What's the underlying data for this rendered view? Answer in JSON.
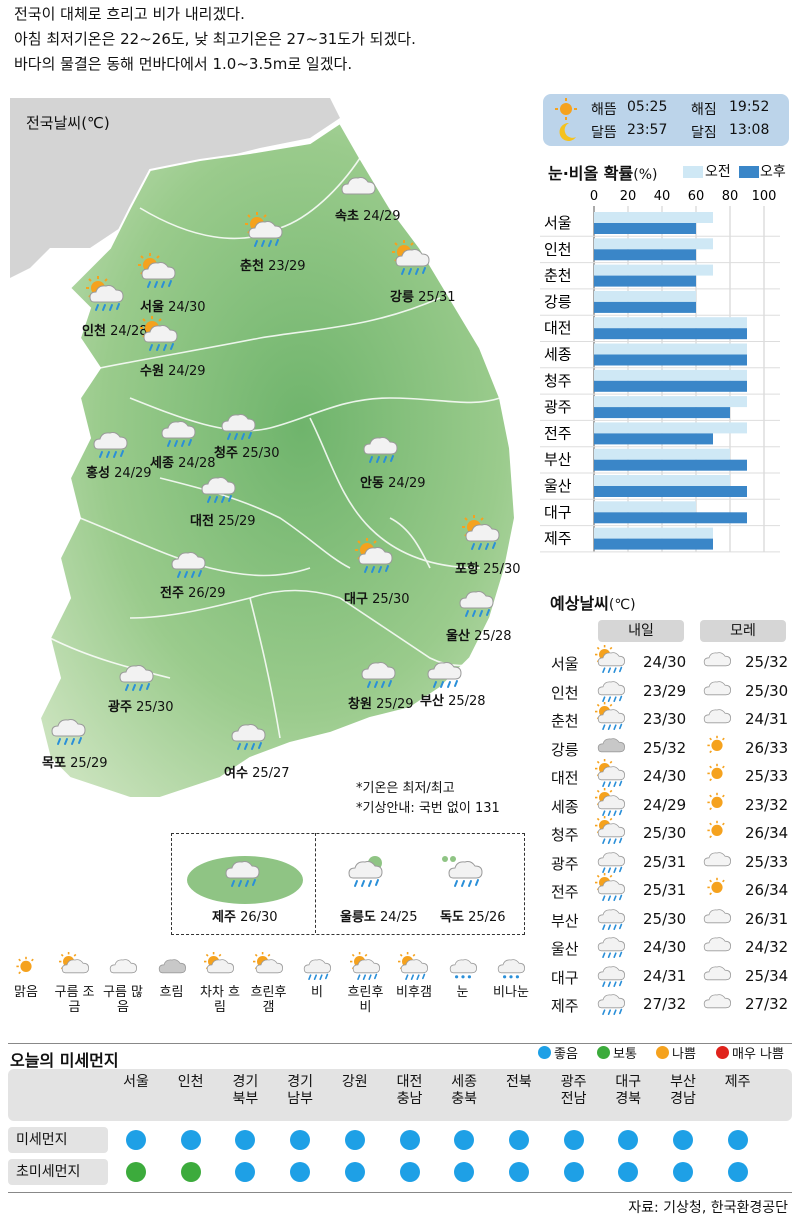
{
  "headline": [
    "전국이 대체로 흐리고 비가 내리겠다.",
    "아침 최저기온은 22~26도, 낮 최고기온은 27~31도가 되겠다.",
    "바다의 물결은 동해 먼바다에서 1.0~3.5m로 일겠다."
  ],
  "map": {
    "title": "전국날씨(℃)",
    "notes": [
      "*기온은 최저/최고",
      "*기상안내: 국번 없이 131"
    ],
    "cities": [
      {
        "name": "속초",
        "temp": "24/29",
        "icon": "cloudy"
      },
      {
        "name": "춘천",
        "temp": "23/29",
        "icon": "sun-rain"
      },
      {
        "name": "강릉",
        "temp": "25/31",
        "icon": "sun-rain"
      },
      {
        "name": "서울",
        "temp": "24/30",
        "icon": "sun-rain"
      },
      {
        "name": "인천",
        "temp": "24/28",
        "icon": "sun-rain"
      },
      {
        "name": "수원",
        "temp": "24/29",
        "icon": "sun-rain"
      },
      {
        "name": "홍성",
        "temp": "24/29",
        "icon": "rain"
      },
      {
        "name": "세종",
        "temp": "24/28",
        "icon": "rain"
      },
      {
        "name": "청주",
        "temp": "25/30",
        "icon": "rain"
      },
      {
        "name": "대전",
        "temp": "25/29",
        "icon": "rain"
      },
      {
        "name": "안동",
        "temp": "24/29",
        "icon": "rain"
      },
      {
        "name": "전주",
        "temp": "26/29",
        "icon": "rain"
      },
      {
        "name": "대구",
        "temp": "25/30",
        "icon": "sun-rain"
      },
      {
        "name": "포항",
        "temp": "25/30",
        "icon": "sun-rain"
      },
      {
        "name": "울산",
        "temp": "25/28",
        "icon": "rain"
      },
      {
        "name": "광주",
        "temp": "25/30",
        "icon": "rain"
      },
      {
        "name": "창원",
        "temp": "25/29",
        "icon": "rain"
      },
      {
        "name": "부산",
        "temp": "25/28",
        "icon": "rain"
      },
      {
        "name": "목포",
        "temp": "25/29",
        "icon": "rain"
      },
      {
        "name": "여수",
        "temp": "25/27",
        "icon": "rain"
      }
    ],
    "islands": [
      {
        "name": "제주",
        "temp": "26/30",
        "icon": "rain"
      },
      {
        "name": "울릉도",
        "temp": "24/25",
        "icon": "rain"
      },
      {
        "name": "독도",
        "temp": "25/26",
        "icon": "rain"
      }
    ]
  },
  "sun_moon": {
    "sunrise_label": "해뜸",
    "sunrise": "05:25",
    "sunset_label": "해짐",
    "sunset": "19:52",
    "moonrise_label": "달뜸",
    "moonrise": "23:57",
    "moonset_label": "달짐",
    "moonset": "13:08"
  },
  "chart_data": {
    "type": "bar",
    "title": "눈·비올 확률",
    "unit": "(%)",
    "orientation": "horizontal",
    "xlim": [
      0,
      100
    ],
    "ticks": [
      "0",
      "20",
      "40",
      "60",
      "80",
      "100"
    ],
    "categories": [
      "서울",
      "인천",
      "춘천",
      "강릉",
      "대전",
      "세종",
      "청주",
      "광주",
      "전주",
      "부산",
      "울산",
      "대구",
      "제주"
    ],
    "series": [
      {
        "name": "오전",
        "color": "#cfe8f5",
        "values": [
          70,
          70,
          70,
          60,
          90,
          90,
          90,
          90,
          90,
          80,
          80,
          60,
          70
        ]
      },
      {
        "name": "오후",
        "color": "#3a86c8",
        "values": [
          60,
          60,
          60,
          60,
          90,
          90,
          90,
          80,
          70,
          90,
          90,
          90,
          70
        ]
      }
    ]
  },
  "forecast": {
    "title": "예상날씨",
    "unit": "(℃)",
    "col1": "내일",
    "col2": "모레",
    "rows": [
      {
        "city": "서울",
        "t1": "24/30",
        "i1": "sun-rain",
        "t2": "25/32",
        "i2": "cloudy"
      },
      {
        "city": "인천",
        "t1": "23/29",
        "i1": "rain",
        "t2": "25/30",
        "i2": "cloudy"
      },
      {
        "city": "춘천",
        "t1": "23/30",
        "i1": "sun-rain",
        "t2": "24/31",
        "i2": "cloudy"
      },
      {
        "city": "강릉",
        "t1": "25/32",
        "i1": "dark-cloud",
        "t2": "26/33",
        "i2": "sun"
      },
      {
        "city": "대전",
        "t1": "24/30",
        "i1": "sun-rain",
        "t2": "25/33",
        "i2": "sun"
      },
      {
        "city": "세종",
        "t1": "24/29",
        "i1": "sun-rain",
        "t2": "23/32",
        "i2": "sun"
      },
      {
        "city": "청주",
        "t1": "25/30",
        "i1": "sun-rain",
        "t2": "26/34",
        "i2": "sun"
      },
      {
        "city": "광주",
        "t1": "25/31",
        "i1": "rain",
        "t2": "25/33",
        "i2": "cloudy"
      },
      {
        "city": "전주",
        "t1": "25/31",
        "i1": "sun-rain",
        "t2": "26/34",
        "i2": "sun"
      },
      {
        "city": "부산",
        "t1": "25/30",
        "i1": "rain",
        "t2": "26/31",
        "i2": "cloudy"
      },
      {
        "city": "울산",
        "t1": "24/30",
        "i1": "rain",
        "t2": "24/32",
        "i2": "cloudy"
      },
      {
        "city": "대구",
        "t1": "24/31",
        "i1": "rain",
        "t2": "25/34",
        "i2": "cloudy"
      },
      {
        "city": "제주",
        "t1": "27/32",
        "i1": "rain",
        "t2": "27/32",
        "i2": "cloudy"
      }
    ]
  },
  "legend": [
    {
      "label": "맑음",
      "icon": "sun"
    },
    {
      "label": "구름 조금",
      "icon": "sun-cloud"
    },
    {
      "label": "구름 많음",
      "icon": "cloudy"
    },
    {
      "label": "흐림",
      "icon": "dark-cloud"
    },
    {
      "label": "차차 흐림",
      "icon": "sun-cloud"
    },
    {
      "label": "흐린후 갬",
      "icon": "sun-cloud"
    },
    {
      "label": "비",
      "icon": "rain"
    },
    {
      "label": "흐린후 비",
      "icon": "sun-rain"
    },
    {
      "label": "비후갬",
      "icon": "sun-rain"
    },
    {
      "label": "눈",
      "icon": "snow"
    },
    {
      "label": "비나눈",
      "icon": "snow"
    }
  ],
  "dust": {
    "title": "오늘의 미세먼지",
    "legend": [
      {
        "label": "좋음",
        "color": "#1ea0e6"
      },
      {
        "label": "보통",
        "color": "#3cab3c"
      },
      {
        "label": "나쁨",
        "color": "#f5a21e"
      },
      {
        "label": "매우 나쁨",
        "color": "#e0231c"
      }
    ],
    "regions": [
      "서울",
      "인천",
      "경기\n북부",
      "경기\n남부",
      "강원",
      "대전\n충남",
      "세종\n충북",
      "전북",
      "광주\n전남",
      "대구\n경북",
      "부산\n경남",
      "제주"
    ],
    "row_labels": [
      "미세먼지",
      "초미세먼지"
    ],
    "pm10": [
      "좋음",
      "좋음",
      "좋음",
      "좋음",
      "좋음",
      "좋음",
      "좋음",
      "좋음",
      "좋음",
      "좋음",
      "좋음",
      "좋음"
    ],
    "pm25": [
      "보통",
      "보통",
      "좋음",
      "좋음",
      "좋음",
      "좋음",
      "좋음",
      "좋음",
      "좋음",
      "좋음",
      "좋음",
      "좋음"
    ]
  },
  "source": "자료: 기상청, 한국환경공단"
}
